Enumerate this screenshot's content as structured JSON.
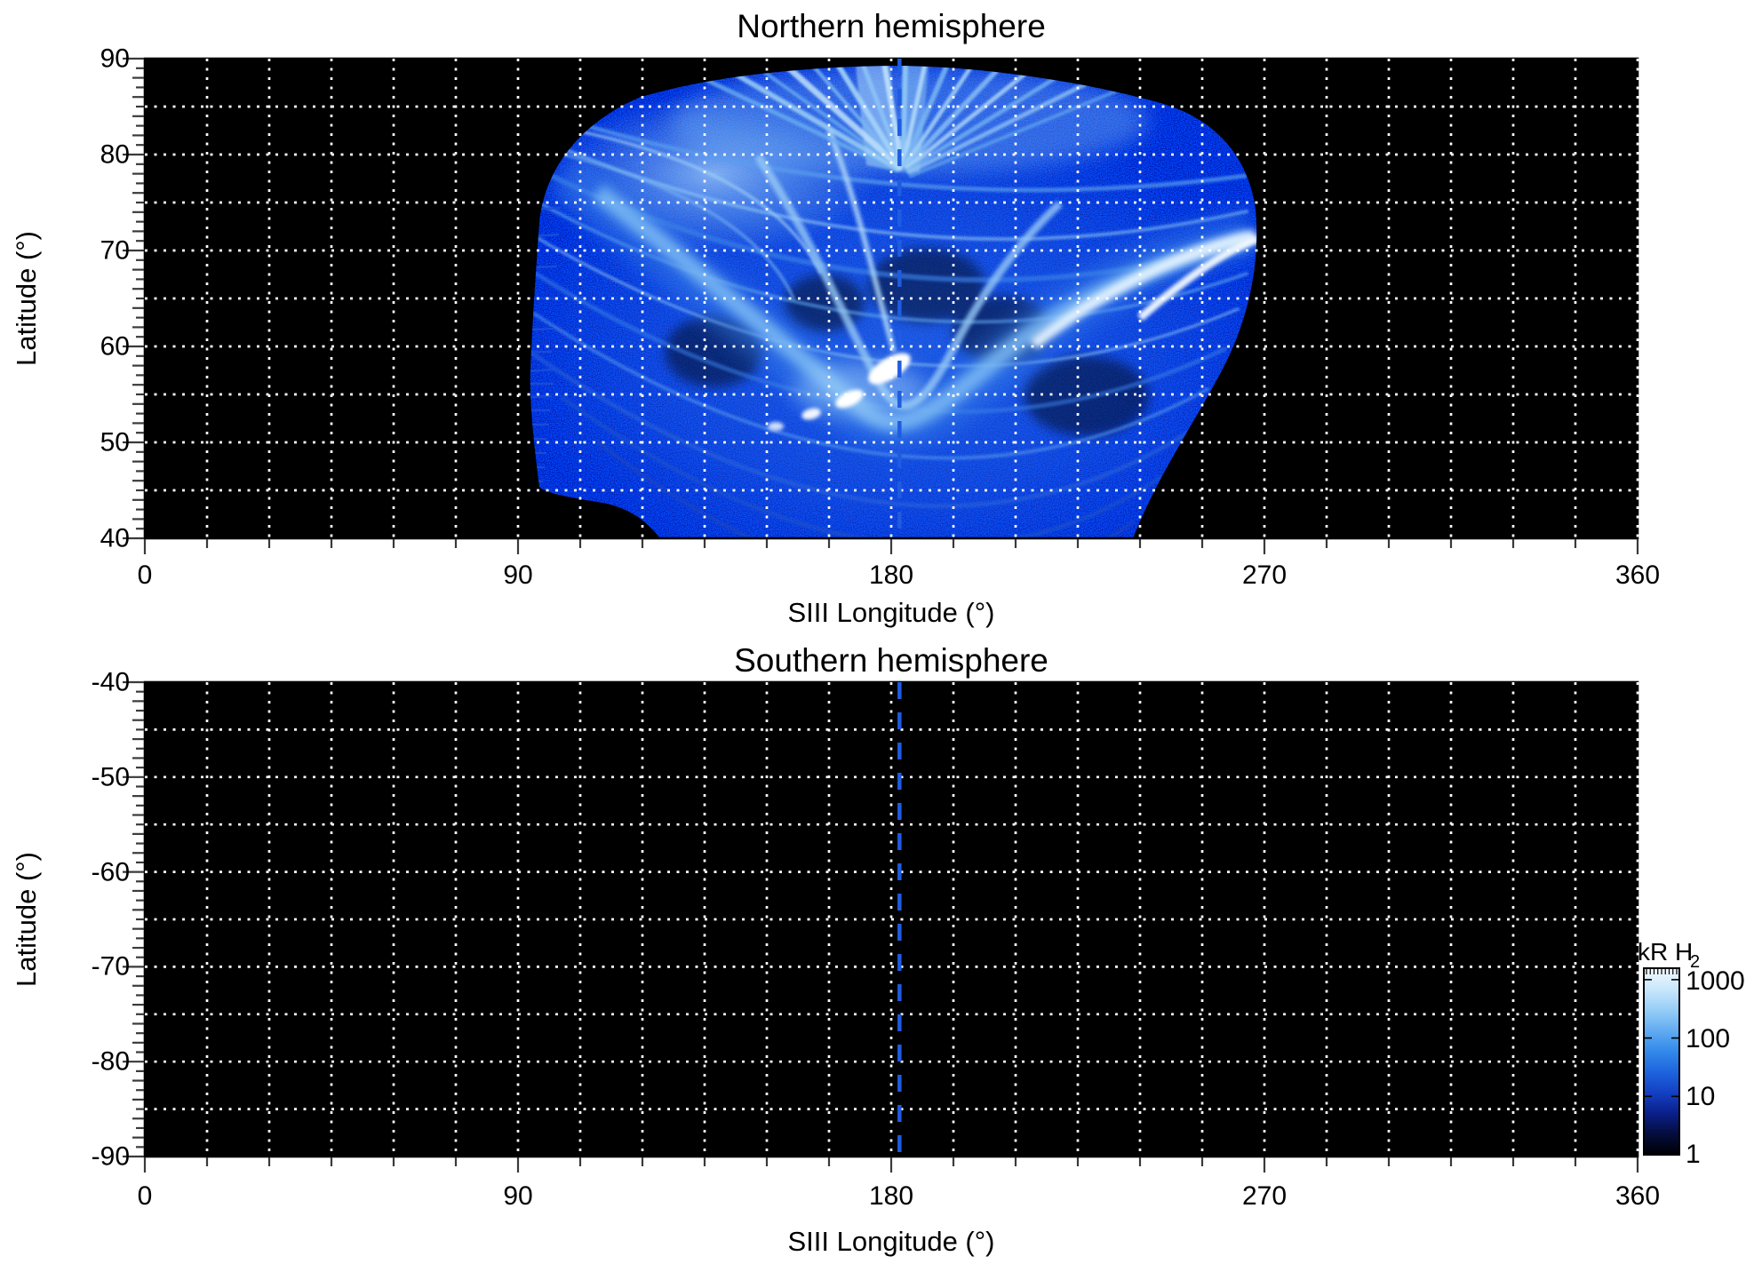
{
  "chart_data": [
    {
      "id": "north",
      "type": "heatmap",
      "title": "Northern hemisphere",
      "xlabel": "SIII Longitude (°)",
      "ylabel": "Latitude (°)",
      "xlim": [
        0,
        360
      ],
      "ylim": [
        40,
        90
      ],
      "xtick_values": [
        0,
        90,
        180,
        270,
        360
      ],
      "xtick_labels": [
        "0",
        "90",
        "180",
        "270",
        "360"
      ],
      "ytick_values": [
        90,
        80,
        70,
        60,
        50,
        40
      ],
      "ytick_labels": [
        "90",
        "80",
        "70",
        "60",
        "50",
        "40"
      ],
      "x_grid_step_deg": 15,
      "y_grid_step_deg": 5,
      "x_minor_tick_step_deg": 15,
      "y_minor_tick_step_deg": 1,
      "grid": true,
      "grid_style": "white-dotted",
      "background": "#000000",
      "reference_line": {
        "lon": 182,
        "style": "dashed",
        "color": "#1f5ce0"
      },
      "data_coverage": {
        "lon_range": [
          93,
          268
        ],
        "lat_range": [
          40,
          89
        ]
      },
      "description": "H2 auroral emission map: bright V-shaped auroral arcs spanning ~95°–268° longitude, dipping to ~52° latitude near 165°–185° longitude; saturated white patches (~1000 kR) at 51°–58° latitude, 158°–185° longitude; fan-like bright streaks converging toward the pole near 182° longitude; faint speckled emission (~1–10 kR) filling latitudes 40°–60°."
    },
    {
      "id": "south",
      "type": "heatmap",
      "title": "Southern hemisphere",
      "xlabel": "SIII Longitude (°)",
      "ylabel": "Latitude (°)",
      "xlim": [
        0,
        360
      ],
      "ylim": [
        -90,
        -40
      ],
      "xtick_values": [
        0,
        90,
        180,
        270,
        360
      ],
      "xtick_labels": [
        "0",
        "90",
        "180",
        "270",
        "360"
      ],
      "ytick_values": [
        -40,
        -50,
        -60,
        -70,
        -80,
        -90
      ],
      "ytick_labels": [
        "-40",
        "-50",
        "-60",
        "-70",
        "-80",
        "-90"
      ],
      "x_grid_step_deg": 15,
      "y_grid_step_deg": 5,
      "x_minor_tick_step_deg": 15,
      "y_minor_tick_step_deg": 1,
      "grid": true,
      "grid_style": "white-dotted",
      "background": "#000000",
      "reference_line": {
        "lon": 182,
        "style": "dashed",
        "color": "#1f5ce0"
      },
      "data_coverage": null,
      "description": "No emission data; panel entirely black with grid and reference longitude line."
    }
  ],
  "colorbar": {
    "title_main": "kR H",
    "title_sub": "2",
    "scale": "log",
    "tick_values": [
      1000,
      100,
      10,
      1
    ],
    "tick_labels": [
      "1000",
      "100",
      "10",
      "1"
    ],
    "gradient_bottom_to_top": [
      "#000002",
      "#040d3c",
      "#0a1f8a",
      "#1440c4",
      "#1e64de",
      "#338ae9",
      "#62acf1",
      "#97cef7",
      "#c9e7fb",
      "#f2faff"
    ]
  },
  "colors": {
    "grid": "#ffffff",
    "frame": "#000000",
    "tick": "#3a3a3a",
    "text": "#000000",
    "reference_line": "#1f5ce0"
  }
}
